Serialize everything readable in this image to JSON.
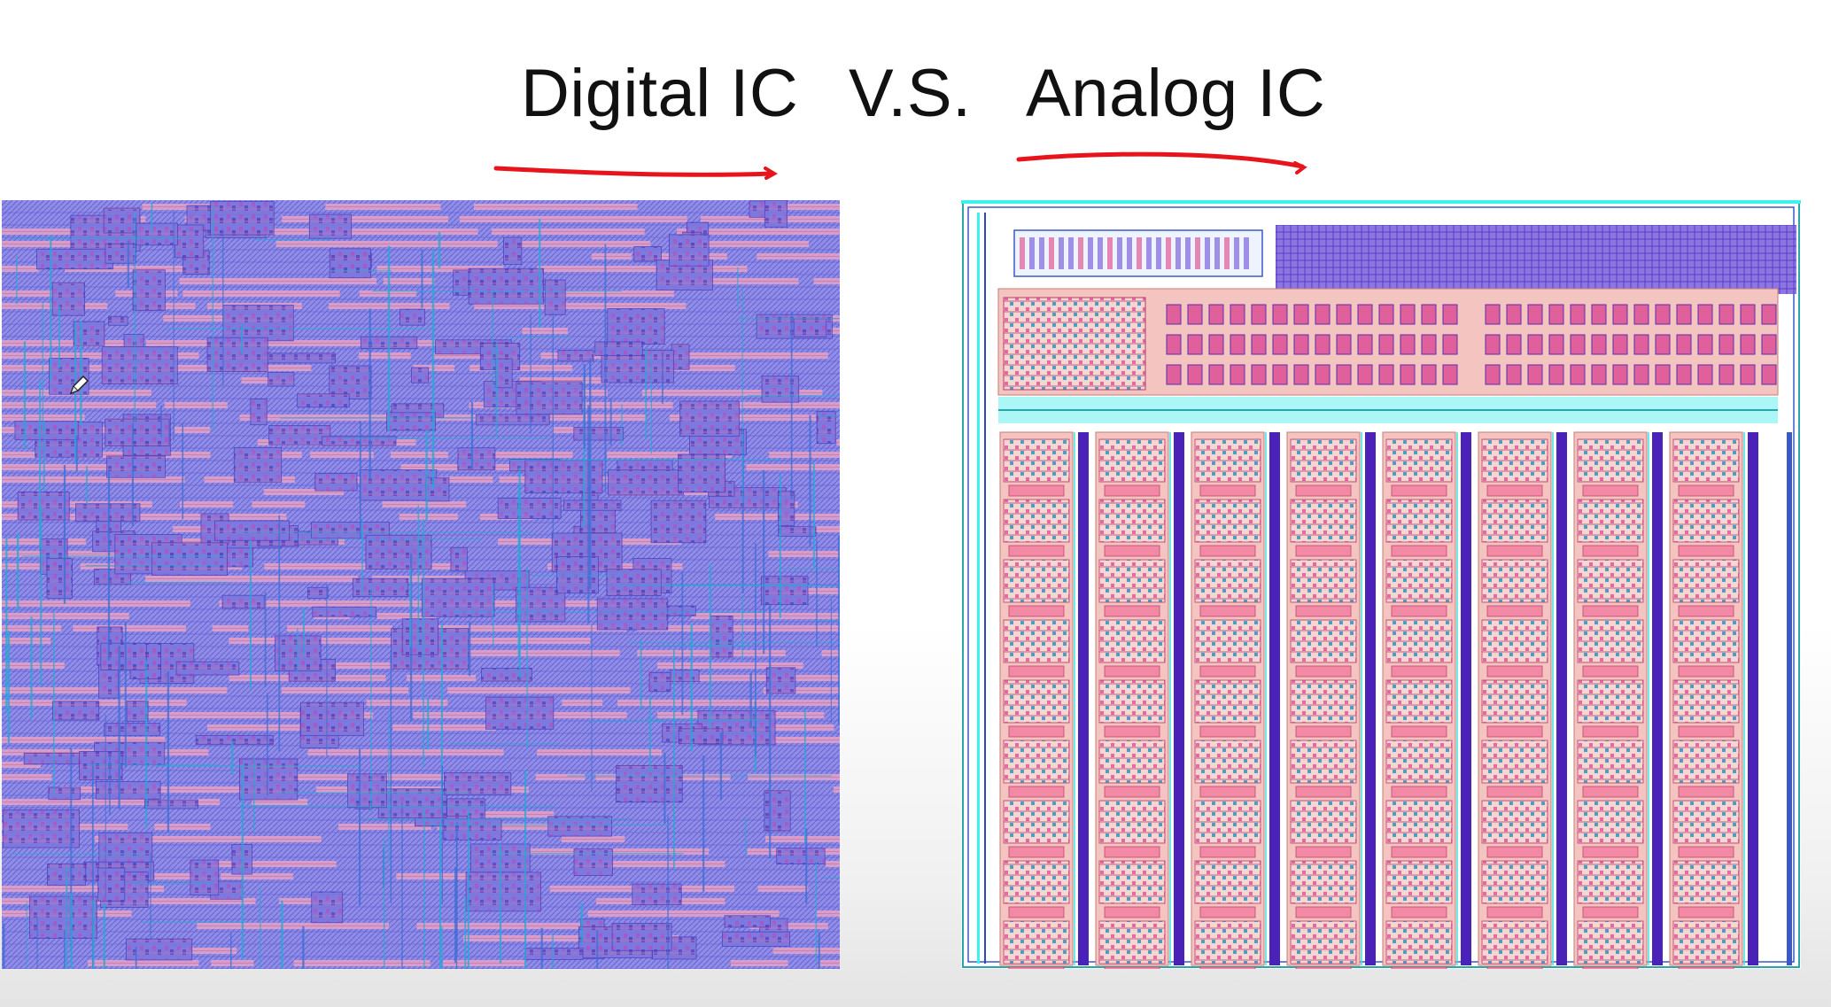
{
  "heading": {
    "digital_label": "Digital IC",
    "vs_label": "V.S.",
    "analog_label": "Analog IC"
  },
  "colors": {
    "annotation_red": "#e8141c",
    "digital_fill": "#8f8ee6",
    "digital_stripe": "#e4a2c8",
    "metal_blue": "#3f6fd6",
    "analog_outline": "#2aa6a8",
    "analog_cyan": "#3ff0f0",
    "analog_salmon": "#f4c4c0",
    "analog_magenta": "#e0609c",
    "analog_pink_bar": "#f28aa6",
    "analog_indigo": "#4a22b8"
  },
  "icons": {
    "cursor": "pencil-cursor-icon"
  }
}
